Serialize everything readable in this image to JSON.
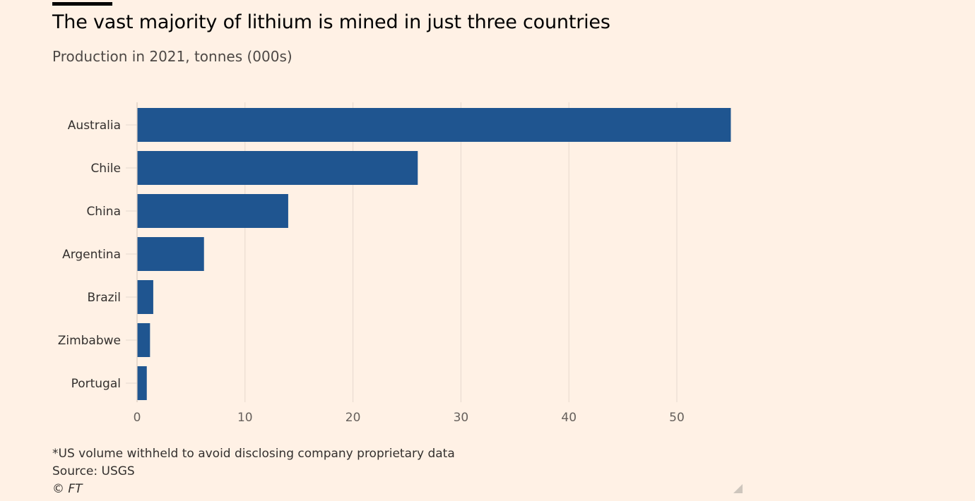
{
  "header": {
    "title": "The vast majority of lithium is mined in just three countries",
    "subtitle": "Production in 2021, tonnes (000s)"
  },
  "footer": {
    "note": "*US volume withheld to avoid disclosing company proprietary data",
    "source": "Source: USGS",
    "copyright": "© FT"
  },
  "colors": {
    "background": "#fff1e5",
    "bar": "#1f5590",
    "grid": "#e6d9ce",
    "text": "#33302e"
  },
  "chart_data": {
    "type": "bar",
    "orientation": "horizontal",
    "title": "The vast majority of lithium is mined in just three countries",
    "subtitle": "Production in 2021, tonnes (000s)",
    "categories": [
      "Australia",
      "Chile",
      "China",
      "Argentina",
      "Brazil",
      "Zimbabwe",
      "Portugal"
    ],
    "values": [
      55,
      26,
      14,
      6.2,
      1.5,
      1.2,
      0.9
    ],
    "xlim": [
      0,
      55
    ],
    "xticks": [
      0,
      10,
      20,
      30,
      40,
      50
    ],
    "xlabel": "",
    "ylabel": "",
    "grid": true,
    "legend": "none"
  }
}
